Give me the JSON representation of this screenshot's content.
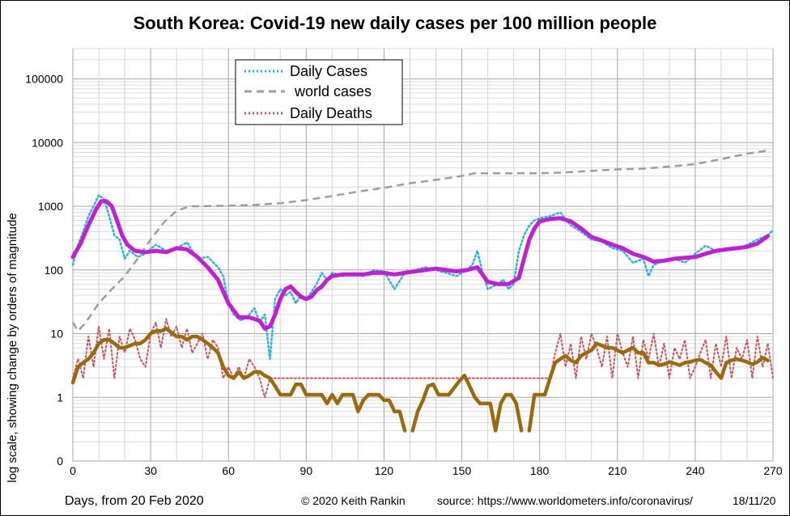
{
  "chart_data": {
    "type": "line",
    "title": "South Korea: Covid-19 new daily cases per 100 million people",
    "xlabel": "Days, from 20 Feb 2020",
    "ylabel": "log scale, showing change by orders of magnitude",
    "x_ticks": [
      0,
      30,
      60,
      90,
      120,
      150,
      180,
      210,
      240,
      270
    ],
    "y_ticks": [
      {
        "value": 0.1,
        "label": "0"
      },
      {
        "value": 1,
        "label": "1"
      },
      {
        "value": 10,
        "label": "10"
      },
      {
        "value": 100,
        "label": "100"
      },
      {
        "value": 1000,
        "label": "1000"
      },
      {
        "value": 10000,
        "label": "10000"
      },
      {
        "value": 100000,
        "label": "100000"
      }
    ],
    "xlim": [
      0,
      270
    ],
    "ylim": [
      0.1,
      300000
    ],
    "y_scale": "log",
    "grid": true,
    "legend_position": "top-left",
    "legend": [
      "Daily Cases",
      "world cases",
      "Daily Deaths"
    ],
    "copyright": "© 2020  Keith Rankin",
    "source": "source:  https://www.worldometers.info/coronavirus/",
    "date": "18/11/20",
    "series": [
      {
        "name": "Daily Cases",
        "style": "dotted",
        "color": "#29b6d8",
        "x": [
          0,
          2,
          4,
          6,
          8,
          10,
          12,
          14,
          16,
          18,
          20,
          22,
          25,
          28,
          32,
          36,
          40,
          44,
          48,
          52,
          56,
          58,
          60,
          62,
          65,
          68,
          70,
          72,
          74,
          76,
          78,
          80,
          82,
          84,
          86,
          88,
          90,
          92,
          94,
          96,
          98,
          100,
          104,
          108,
          112,
          116,
          120,
          124,
          128,
          132,
          136,
          140,
          144,
          148,
          152,
          154,
          156,
          158,
          160,
          162,
          164,
          166,
          168,
          170,
          172,
          174,
          176,
          178,
          180,
          184,
          188,
          192,
          196,
          200,
          204,
          208,
          212,
          216,
          220,
          222,
          224,
          228,
          232,
          236,
          240,
          244,
          248,
          252,
          256,
          260,
          264,
          268,
          270
        ],
        "values": [
          120,
          250,
          400,
          700,
          1000,
          1500,
          1300,
          700,
          350,
          300,
          150,
          200,
          160,
          180,
          250,
          200,
          220,
          270,
          150,
          160,
          110,
          80,
          30,
          20,
          16,
          20,
          25,
          15,
          20,
          4,
          35,
          50,
          40,
          45,
          30,
          40,
          35,
          45,
          60,
          90,
          70,
          90,
          80,
          90,
          80,
          100,
          95,
          50,
          90,
          100,
          110,
          100,
          90,
          80,
          100,
          120,
          200,
          90,
          50,
          55,
          60,
          70,
          50,
          60,
          200,
          350,
          500,
          600,
          650,
          700,
          800,
          500,
          400,
          300,
          280,
          220,
          200,
          130,
          150,
          80,
          120,
          140,
          150,
          130,
          180,
          240,
          200,
          220,
          210,
          250,
          300,
          350,
          420
        ]
      },
      {
        "name": "world cases",
        "style": "dashed",
        "color": "#9e9e9e",
        "x": [
          0,
          2,
          5,
          10,
          15,
          20,
          25,
          30,
          35,
          40,
          45,
          50,
          60,
          70,
          80,
          90,
          100,
          110,
          120,
          130,
          140,
          150,
          155,
          160,
          170,
          180,
          190,
          200,
          210,
          220,
          230,
          240,
          250,
          260,
          268
        ],
        "values": [
          15,
          11,
          15,
          30,
          50,
          80,
          150,
          300,
          550,
          850,
          1000,
          1000,
          1020,
          1050,
          1120,
          1250,
          1450,
          1700,
          1950,
          2300,
          2600,
          3000,
          3300,
          3300,
          3300,
          3300,
          3400,
          3600,
          3800,
          3900,
          4200,
          4600,
          5500,
          6700,
          7500
        ]
      },
      {
        "name": "Daily Deaths",
        "style": "dotted",
        "color": "#c9555d",
        "x": [
          0,
          2,
          4,
          6,
          8,
          10,
          12,
          14,
          16,
          18,
          20,
          22,
          24,
          26,
          28,
          30,
          32,
          34,
          36,
          38,
          40,
          42,
          44,
          46,
          48,
          50,
          52,
          54,
          56,
          58,
          60,
          62,
          64,
          66,
          68,
          70,
          72,
          74,
          76,
          184,
          186,
          188,
          190,
          192,
          194,
          196,
          198,
          200,
          202,
          204,
          206,
          208,
          210,
          212,
          214,
          216,
          218,
          220,
          222,
          224,
          226,
          228,
          230,
          232,
          234,
          236,
          238,
          240,
          242,
          244,
          246,
          248,
          250,
          252,
          254,
          256,
          258,
          260,
          262,
          264,
          266,
          268,
          270
        ],
        "values": [
          2,
          4,
          2,
          9,
          3,
          13,
          4,
          12,
          2,
          9,
          5,
          12,
          8,
          4,
          3,
          10,
          15,
          6,
          17,
          9,
          13,
          6,
          12,
          5,
          7,
          10,
          4,
          8,
          6,
          2,
          3,
          2,
          3,
          2,
          4,
          3,
          2,
          1,
          2,
          2,
          5,
          10,
          3,
          7,
          2,
          9,
          4,
          10,
          6,
          3,
          9,
          2,
          10,
          5,
          3,
          9,
          2,
          8,
          4,
          10,
          3,
          7,
          2,
          6,
          4,
          8,
          2,
          3,
          5,
          8,
          2,
          7,
          3,
          9,
          2,
          6,
          4,
          8,
          2,
          9,
          3,
          7,
          2
        ]
      },
      {
        "name": "Cases (smoothed)",
        "style": "solid",
        "color": "#c21ed8",
        "x": [
          0,
          3,
          6,
          9,
          11,
          13,
          15,
          17,
          19,
          21,
          24,
          28,
          32,
          36,
          40,
          44,
          48,
          52,
          56,
          60,
          64,
          68,
          72,
          74,
          76,
          78,
          80,
          82,
          84,
          86,
          88,
          90,
          92,
          94,
          96,
          98,
          100,
          104,
          108,
          112,
          116,
          120,
          124,
          128,
          132,
          136,
          140,
          144,
          148,
          152,
          156,
          160,
          164,
          168,
          172,
          174,
          176,
          178,
          180,
          184,
          188,
          192,
          196,
          200,
          204,
          208,
          212,
          216,
          220,
          224,
          228,
          232,
          236,
          240,
          244,
          248,
          252,
          256,
          260,
          264,
          268
        ],
        "values": [
          160,
          260,
          500,
          900,
          1200,
          1200,
          1000,
          600,
          350,
          250,
          200,
          190,
          200,
          190,
          220,
          210,
          160,
          110,
          70,
          30,
          18,
          18,
          16,
          12,
          13,
          20,
          35,
          50,
          55,
          45,
          38,
          35,
          38,
          48,
          55,
          70,
          80,
          85,
          85,
          85,
          90,
          90,
          85,
          90,
          95,
          100,
          105,
          100,
          95,
          100,
          110,
          65,
          60,
          60,
          75,
          150,
          300,
          450,
          580,
          630,
          650,
          580,
          450,
          330,
          290,
          250,
          220,
          180,
          160,
          135,
          140,
          150,
          155,
          160,
          180,
          200,
          210,
          220,
          230,
          260,
          340
        ]
      },
      {
        "name": "Deaths (smoothed)",
        "style": "solid",
        "color": "#9a6a0d",
        "segments": [
          {
            "x": [
              0,
              2,
              4,
              6,
              8,
              10,
              12,
              14,
              16,
              18,
              20,
              22,
              24,
              26,
              28,
              30,
              32,
              34,
              36,
              38,
              40,
              42,
              44,
              46,
              48,
              50,
              52,
              54,
              56,
              58,
              60,
              62,
              64,
              66,
              68,
              70,
              72,
              74,
              76,
              78,
              80,
              82,
              84,
              86,
              88,
              90,
              92,
              94,
              96,
              98,
              100,
              102,
              104,
              106,
              108,
              110,
              112,
              114,
              116,
              118,
              120,
              122,
              124,
              126,
              128
            ],
            "values": [
              1.7,
              3,
              3.5,
              4,
              5,
              7,
              8,
              8,
              7,
              6,
              6,
              6.5,
              7,
              7,
              8,
              10,
              11,
              11,
              12,
              10.5,
              9,
              9,
              8,
              9,
              9,
              8,
              7,
              6,
              5,
              3,
              2.2,
              2,
              2.5,
              2,
              2.2,
              2.5,
              2.5,
              2.2,
              2,
              1.5,
              1.1,
              1.1,
              1.1,
              1.6,
              1.6,
              1.1,
              1.1,
              1.1,
              1.1,
              0.8,
              1.1,
              0.8,
              1.1,
              1.1,
              1.1,
              0.6,
              0.9,
              1.1,
              1.1,
              1.1,
              0.9,
              0.9,
              0.6,
              0.6,
              0.3
            ]
          },
          {
            "x": [
              131,
              133,
              135,
              137,
              139,
              141,
              143,
              145,
              147,
              149,
              151,
              153,
              155,
              157,
              159,
              161,
              163,
              165,
              167,
              169,
              171,
              173
            ],
            "values": [
              0.3,
              0.6,
              0.9,
              1.5,
              1.6,
              1.1,
              1.1,
              1.1,
              1.4,
              1.8,
              2.2,
              1.5,
              1.0,
              0.8,
              0.8,
              0.8,
              0.3,
              0.8,
              1.1,
              1.1,
              0.8,
              0.3
            ]
          },
          {
            "x": [
              176,
              178,
              180,
              182,
              184,
              186,
              188,
              190,
              192,
              194,
              196,
              198,
              200,
              202,
              204,
              206,
              208,
              210,
              212,
              214,
              216,
              218,
              220,
              222,
              224,
              226,
              228,
              230,
              232,
              234,
              236,
              238,
              240,
              242,
              244,
              246,
              248,
              250,
              252,
              254,
              256,
              258,
              260,
              262,
              264,
              266,
              268
            ],
            "values": [
              0.3,
              1.1,
              1.1,
              1.1,
              2,
              3.5,
              4,
              4.5,
              3.8,
              3.5,
              4.5,
              5,
              5.5,
              7,
              6.5,
              6,
              6,
              5.5,
              5,
              5.5,
              6,
              5,
              5,
              3.5,
              3.5,
              3.2,
              3.3,
              3.6,
              3.4,
              3.2,
              3.5,
              3.6,
              3.8,
              3.9,
              3.5,
              3.2,
              2.5,
              2,
              3.5,
              3.8,
              4,
              3.8,
              3.6,
              3.3,
              3.6,
              4.2,
              3.8
            ]
          }
        ]
      }
    ]
  }
}
